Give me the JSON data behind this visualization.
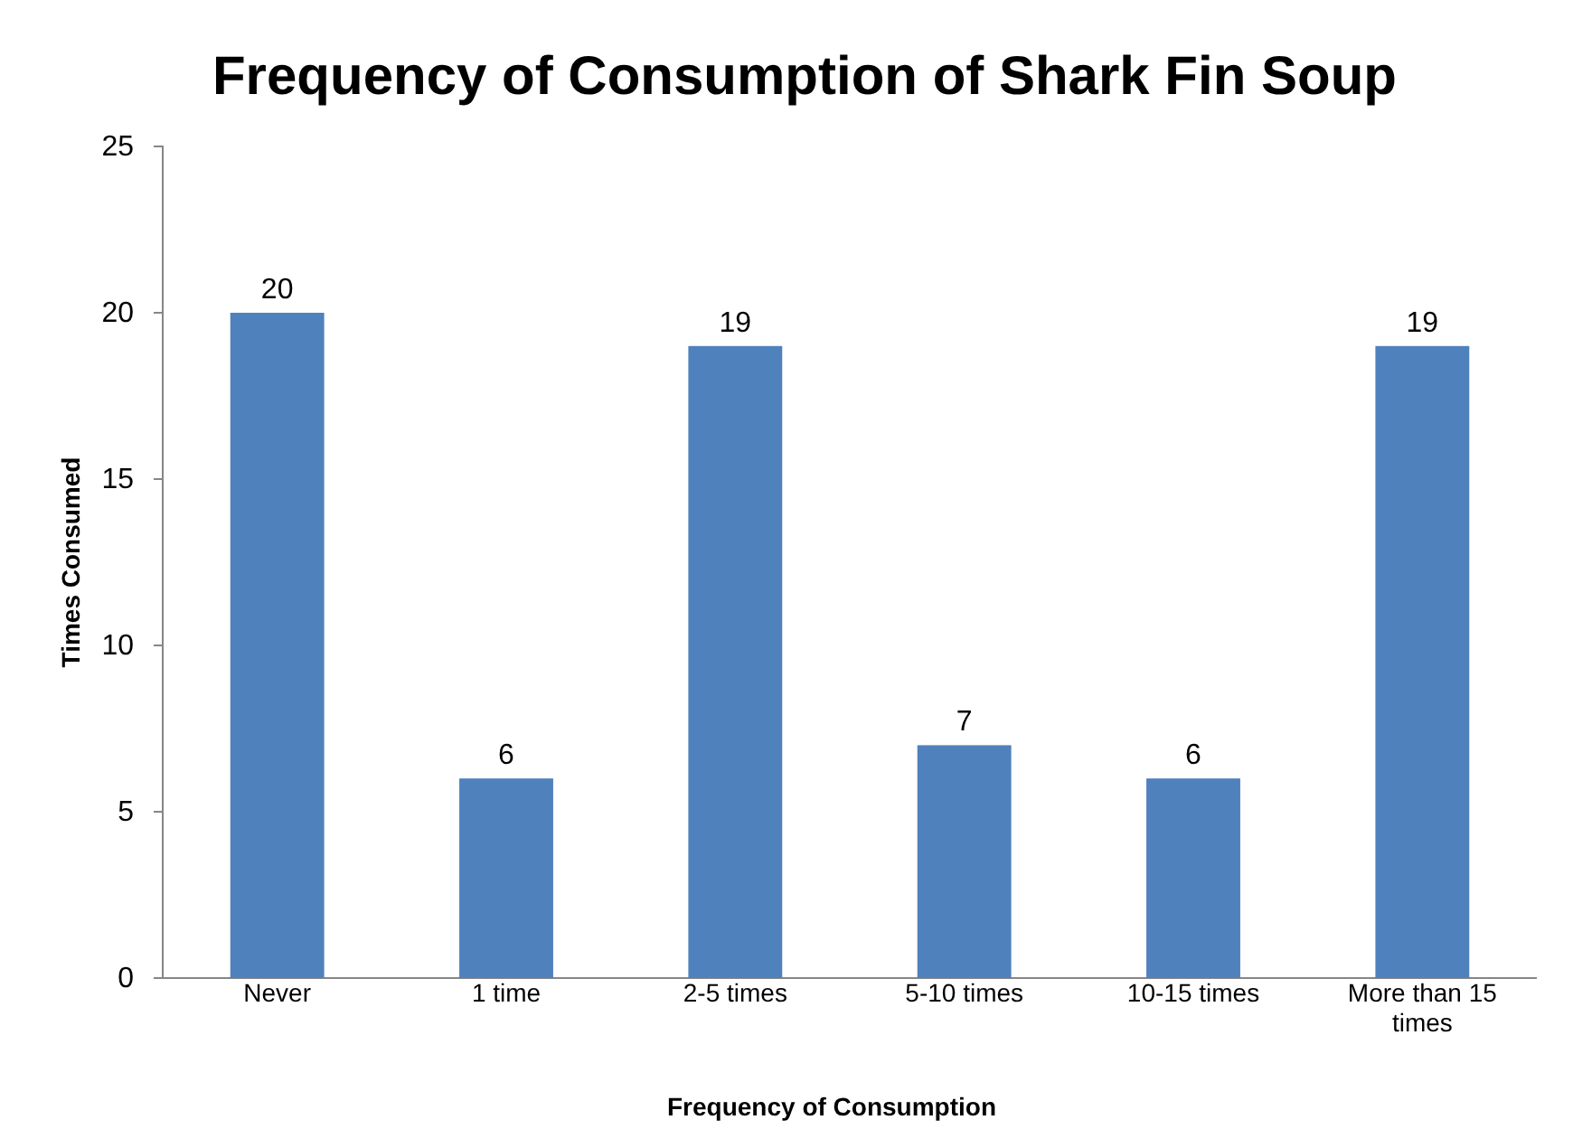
{
  "chart_data": {
    "type": "bar",
    "title": "Frequency of Consumption of Shark Fin Soup",
    "xlabel": "Frequency of Consumption",
    "ylabel": "Times Consumed",
    "categories": [
      "Never",
      "1 time",
      "2-5 times",
      "5-10 times",
      "10-15 times",
      "More than 15 times"
    ],
    "values": [
      20,
      6,
      19,
      7,
      6,
      19
    ],
    "color": "#4f81bd",
    "ylim": [
      0,
      25
    ],
    "yticks": [
      0,
      5,
      10,
      15,
      20,
      25
    ],
    "data_labels": true
  }
}
